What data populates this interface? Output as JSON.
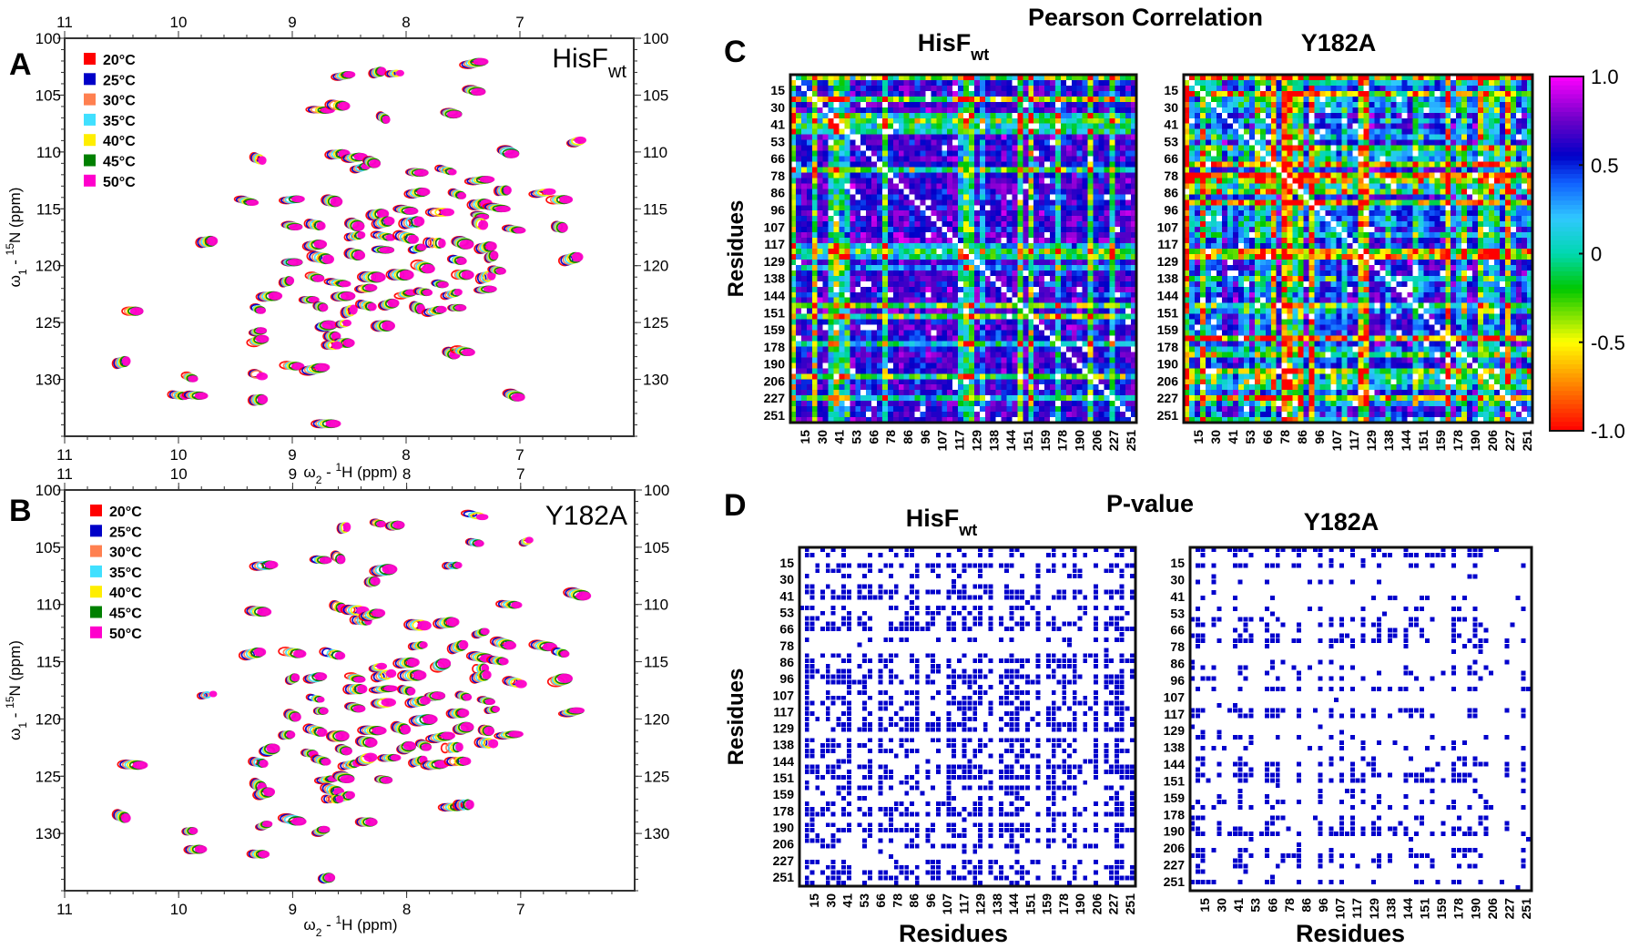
{
  "chart_data": [
    {
      "type": "scatter",
      "subtype": "2D HSQC contour overlay",
      "panel": "A",
      "label_main": "HisF",
      "label_sub": "wt",
      "xlabel": {
        "symbol": "ω",
        "sub": "2",
        "mid": " - ",
        "sup": "1",
        "unit": "H  (ppm)"
      },
      "ylabel": {
        "symbol": "ω",
        "sub": "1",
        "mid": " - ",
        "sup": "15",
        "unit": "N  (ppm)"
      },
      "xlim": [
        11,
        6
      ],
      "ylim": [
        100,
        135
      ],
      "xticks": [
        11,
        10,
        9,
        8,
        7
      ],
      "yticks": [
        100,
        105,
        110,
        115,
        120,
        125,
        130
      ],
      "legend": [
        {
          "label": "20°C",
          "color": "#ff0000"
        },
        {
          "label": "25°C",
          "color": "#0000c8"
        },
        {
          "label": "30°C",
          "color": "#ff8050"
        },
        {
          "label": "35°C",
          "color": "#40e0ff"
        },
        {
          "label": "40°C",
          "color": "#ffee00"
        },
        {
          "label": "45°C",
          "color": "#008000"
        },
        {
          "label": "50°C",
          "color": "#ff00cc"
        }
      ],
      "peaks": [
        [
          8.55,
          103.3
        ],
        [
          8.25,
          103.0
        ],
        [
          8.1,
          103.1
        ],
        [
          7.4,
          102.2
        ],
        [
          7.4,
          104.6
        ],
        [
          8.75,
          106.3
        ],
        [
          8.6,
          105.9
        ],
        [
          8.2,
          107.0
        ],
        [
          7.6,
          106.6
        ],
        [
          8.6,
          110.2
        ],
        [
          8.45,
          110.5
        ],
        [
          8.4,
          111.4
        ],
        [
          8.3,
          110.9
        ],
        [
          7.1,
          110.0
        ],
        [
          6.5,
          109.1
        ],
        [
          9.3,
          110.6
        ],
        [
          7.9,
          111.8
        ],
        [
          7.65,
          111.6
        ],
        [
          7.35,
          112.5
        ],
        [
          7.15,
          113.4
        ],
        [
          6.8,
          113.6
        ],
        [
          6.65,
          114.2
        ],
        [
          9.4,
          114.3
        ],
        [
          9.0,
          114.2
        ],
        [
          8.65,
          114.3
        ],
        [
          7.9,
          113.6
        ],
        [
          7.55,
          113.7
        ],
        [
          7.35,
          114.6
        ],
        [
          7.2,
          114.9
        ],
        [
          8.25,
          115.5
        ],
        [
          8.0,
          115.1
        ],
        [
          7.7,
          115.3
        ],
        [
          7.35,
          115.6
        ],
        [
          9.0,
          116.5
        ],
        [
          8.8,
          116.4
        ],
        [
          8.45,
          116.4
        ],
        [
          8.2,
          116.2
        ],
        [
          7.95,
          116.2
        ],
        [
          7.35,
          116.3
        ],
        [
          7.05,
          116.8
        ],
        [
          6.65,
          116.6
        ],
        [
          9.75,
          117.9
        ],
        [
          8.8,
          118.2
        ],
        [
          8.45,
          117.4
        ],
        [
          8.2,
          117.4
        ],
        [
          8.0,
          117.5
        ],
        [
          7.75,
          118.0
        ],
        [
          7.5,
          118.0
        ],
        [
          7.3,
          118.4
        ],
        [
          9.0,
          119.7
        ],
        [
          8.75,
          119.3
        ],
        [
          8.45,
          119.0
        ],
        [
          8.2,
          118.6
        ],
        [
          7.9,
          118.5
        ],
        [
          7.55,
          119.5
        ],
        [
          7.25,
          119.2
        ],
        [
          6.55,
          119.4
        ],
        [
          9.05,
          121.4
        ],
        [
          8.8,
          121.0
        ],
        [
          8.6,
          121.5
        ],
        [
          8.3,
          121.0
        ],
        [
          8.05,
          120.8
        ],
        [
          7.85,
          120.1
        ],
        [
          7.7,
          121.6
        ],
        [
          7.5,
          120.8
        ],
        [
          7.3,
          121.0
        ],
        [
          7.2,
          120.4
        ],
        [
          9.2,
          122.7
        ],
        [
          8.85,
          123.0
        ],
        [
          8.55,
          122.7
        ],
        [
          8.35,
          122.0
        ],
        [
          8.0,
          122.5
        ],
        [
          7.85,
          122.3
        ],
        [
          7.6,
          122.5
        ],
        [
          7.3,
          122.1
        ],
        [
          9.3,
          123.8
        ],
        [
          8.75,
          123.6
        ],
        [
          8.5,
          124.0
        ],
        [
          8.35,
          123.5
        ],
        [
          8.15,
          123.4
        ],
        [
          7.9,
          123.7
        ],
        [
          7.75,
          124.0
        ],
        [
          7.55,
          123.7
        ],
        [
          10.4,
          124.0
        ],
        [
          8.7,
          125.3
        ],
        [
          8.55,
          125.1
        ],
        [
          8.65,
          126.2
        ],
        [
          8.55,
          126.8
        ],
        [
          8.2,
          125.3
        ],
        [
          9.3,
          125.8
        ],
        [
          9.3,
          126.6
        ],
        [
          8.65,
          127.0
        ],
        [
          7.6,
          127.7
        ],
        [
          7.5,
          127.5
        ],
        [
          10.5,
          128.5
        ],
        [
          9.0,
          128.8
        ],
        [
          8.8,
          129.1
        ],
        [
          9.3,
          129.6
        ],
        [
          9.9,
          129.8
        ],
        [
          10.0,
          131.4
        ],
        [
          9.85,
          131.4
        ],
        [
          9.3,
          131.8
        ],
        [
          7.05,
          131.4
        ],
        [
          8.7,
          133.9
        ]
      ]
    },
    {
      "type": "scatter",
      "subtype": "2D HSQC contour overlay",
      "panel": "B",
      "label_main": "Y182A",
      "label_sub": "",
      "xlabel": {
        "symbol": "ω",
        "sub": "2",
        "mid": " - ",
        "sup": "1",
        "unit": "H  (ppm)"
      },
      "ylabel": {
        "symbol": "ω",
        "sub": "1",
        "mid": " - ",
        "sup": "15",
        "unit": "N  (ppm)"
      },
      "xlim": [
        11,
        6
      ],
      "ylim": [
        100,
        135
      ],
      "xticks": [
        11,
        10,
        9,
        8,
        7
      ],
      "yticks": [
        100,
        105,
        110,
        115,
        120,
        125,
        130
      ],
      "legend": [
        {
          "label": "20°C",
          "color": "#ff0000"
        },
        {
          "label": "25°C",
          "color": "#0000c8"
        },
        {
          "label": "30°C",
          "color": "#ff8050"
        },
        {
          "label": "35°C",
          "color": "#40e0ff"
        },
        {
          "label": "40°C",
          "color": "#ffee00"
        },
        {
          "label": "45°C",
          "color": "#008000"
        },
        {
          "label": "50°C",
          "color": "#ff00cc"
        }
      ],
      "peaks": [
        [
          8.55,
          103.3
        ],
        [
          8.25,
          102.9
        ],
        [
          8.1,
          103.1
        ],
        [
          7.4,
          102.2
        ],
        [
          7.4,
          104.6
        ],
        [
          6.95,
          104.5
        ],
        [
          8.75,
          106.1
        ],
        [
          8.6,
          105.9
        ],
        [
          9.25,
          106.6
        ],
        [
          8.2,
          107.0
        ],
        [
          7.6,
          106.6
        ],
        [
          8.3,
          108.0
        ],
        [
          8.6,
          110.2
        ],
        [
          8.45,
          110.5
        ],
        [
          8.4,
          111.4
        ],
        [
          8.3,
          110.9
        ],
        [
          7.1,
          110.0
        ],
        [
          6.5,
          109.1
        ],
        [
          9.3,
          110.6
        ],
        [
          7.9,
          111.8
        ],
        [
          7.65,
          111.6
        ],
        [
          7.35,
          112.5
        ],
        [
          7.15,
          113.4
        ],
        [
          6.8,
          113.6
        ],
        [
          6.65,
          114.2
        ],
        [
          9.35,
          114.3
        ],
        [
          9.0,
          114.2
        ],
        [
          8.65,
          114.3
        ],
        [
          7.9,
          113.6
        ],
        [
          7.55,
          113.7
        ],
        [
          7.35,
          114.6
        ],
        [
          7.2,
          114.9
        ],
        [
          8.25,
          115.5
        ],
        [
          8.0,
          115.1
        ],
        [
          7.7,
          115.3
        ],
        [
          7.35,
          115.6
        ],
        [
          9.0,
          116.5
        ],
        [
          8.8,
          116.4
        ],
        [
          8.45,
          116.4
        ],
        [
          8.2,
          116.2
        ],
        [
          7.95,
          116.2
        ],
        [
          7.35,
          116.3
        ],
        [
          7.05,
          116.8
        ],
        [
          6.65,
          116.6
        ],
        [
          9.75,
          117.9
        ],
        [
          8.8,
          118.2
        ],
        [
          8.45,
          117.4
        ],
        [
          8.2,
          117.4
        ],
        [
          8.0,
          117.5
        ],
        [
          7.75,
          118.0
        ],
        [
          7.5,
          118.0
        ],
        [
          7.3,
          118.4
        ],
        [
          9.0,
          119.7
        ],
        [
          8.75,
          119.3
        ],
        [
          8.45,
          119.0
        ],
        [
          8.2,
          118.6
        ],
        [
          7.9,
          118.5
        ],
        [
          7.55,
          119.5
        ],
        [
          7.25,
          119.2
        ],
        [
          6.55,
          119.4
        ],
        [
          9.05,
          121.4
        ],
        [
          8.8,
          121.0
        ],
        [
          8.6,
          121.5
        ],
        [
          8.3,
          121.0
        ],
        [
          8.05,
          120.8
        ],
        [
          7.85,
          120.1
        ],
        [
          7.7,
          121.6
        ],
        [
          7.5,
          120.8
        ],
        [
          7.3,
          121.0
        ],
        [
          7.1,
          121.4
        ],
        [
          9.2,
          122.7
        ],
        [
          8.85,
          123.0
        ],
        [
          8.55,
          122.7
        ],
        [
          8.35,
          122.0
        ],
        [
          8.0,
          122.5
        ],
        [
          7.85,
          122.3
        ],
        [
          7.6,
          122.5
        ],
        [
          7.3,
          122.1
        ],
        [
          9.3,
          123.8
        ],
        [
          8.75,
          123.6
        ],
        [
          8.5,
          124.0
        ],
        [
          8.35,
          123.5
        ],
        [
          8.15,
          123.4
        ],
        [
          7.9,
          123.7
        ],
        [
          7.75,
          124.0
        ],
        [
          7.55,
          123.7
        ],
        [
          10.4,
          124.0
        ],
        [
          8.7,
          125.3
        ],
        [
          8.55,
          125.1
        ],
        [
          8.65,
          126.2
        ],
        [
          8.55,
          126.8
        ],
        [
          8.2,
          125.3
        ],
        [
          9.3,
          125.8
        ],
        [
          9.25,
          126.5
        ],
        [
          8.65,
          127.0
        ],
        [
          7.6,
          127.7
        ],
        [
          7.5,
          127.5
        ],
        [
          10.5,
          128.5
        ],
        [
          9.0,
          128.8
        ],
        [
          8.75,
          129.8
        ],
        [
          9.25,
          129.3
        ],
        [
          8.35,
          129.0
        ],
        [
          9.9,
          129.8
        ],
        [
          9.85,
          131.4
        ],
        [
          9.3,
          131.8
        ],
        [
          8.7,
          133.9
        ]
      ]
    },
    {
      "type": "heatmap",
      "panel": "C",
      "group_title": "Pearson Correlation",
      "title_main": "HisF",
      "title_sub": "wt",
      "ylabel": "Residues",
      "xlabel": "",
      "tick_labels": [
        "15",
        "30",
        "41",
        "53",
        "66",
        "78",
        "86",
        "96",
        "107",
        "117",
        "129",
        "138",
        "144",
        "151",
        "159",
        "178",
        "190",
        "206",
        "227",
        "251"
      ],
      "colorscale": "rainbow",
      "zlim": [
        -1.0,
        1.0
      ]
    },
    {
      "type": "heatmap",
      "panel": "C",
      "title_main": "Y182A",
      "title_sub": "",
      "ylabel": "",
      "xlabel": "",
      "tick_labels": [
        "15",
        "30",
        "41",
        "53",
        "66",
        "78",
        "86",
        "96",
        "107",
        "117",
        "129",
        "138",
        "144",
        "151",
        "159",
        "178",
        "190",
        "206",
        "227",
        "251"
      ],
      "colorscale": "rainbow",
      "zlim": [
        -1.0,
        1.0
      ]
    },
    {
      "type": "heatmap",
      "panel": "D",
      "group_title": "P-value",
      "title_main": "HisF",
      "title_sub": "wt",
      "ylabel": "Residues",
      "xlabel": "Residues",
      "tick_labels": [
        "15",
        "30",
        "41",
        "53",
        "66",
        "78",
        "86",
        "96",
        "107",
        "117",
        "129",
        "138",
        "144",
        "151",
        "159",
        "178",
        "190",
        "206",
        "227",
        "251"
      ],
      "colorscale": "binary",
      "color": "#0000cc"
    },
    {
      "type": "heatmap",
      "panel": "D",
      "title_main": "Y182A",
      "title_sub": "",
      "ylabel": "",
      "xlabel": "Residues",
      "tick_labels": [
        "15",
        "30",
        "41",
        "53",
        "66",
        "78",
        "86",
        "96",
        "107",
        "117",
        "129",
        "138",
        "144",
        "151",
        "159",
        "178",
        "190",
        "206",
        "227",
        "251"
      ],
      "colorscale": "binary",
      "color": "#0000cc"
    }
  ],
  "colorbar": {
    "ticks": [
      {
        "value": 1.0,
        "label": "1.0"
      },
      {
        "value": 0.5,
        "label": "0.5"
      },
      {
        "value": 0,
        "label": "0"
      },
      {
        "value": -0.5,
        "label": "-0.5"
      },
      {
        "value": -1.0,
        "label": "-1.0"
      }
    ],
    "stops": [
      [
        "-1",
        "#ff0000"
      ],
      [
        "-0.7",
        "#ff9900"
      ],
      [
        "-0.5",
        "#ffff00"
      ],
      [
        "-0.2",
        "#00c800"
      ],
      [
        "0",
        "#00d8b0"
      ],
      [
        "0.2",
        "#30c8ff"
      ],
      [
        "0.4",
        "#1060ff"
      ],
      [
        "0.55",
        "#0000c8"
      ],
      [
        "0.75",
        "#6a00c8"
      ],
      [
        "1",
        "#ff00ff"
      ]
    ]
  },
  "panel_labels": {
    "a": "A",
    "b": "B",
    "c": "C",
    "d": "D"
  }
}
